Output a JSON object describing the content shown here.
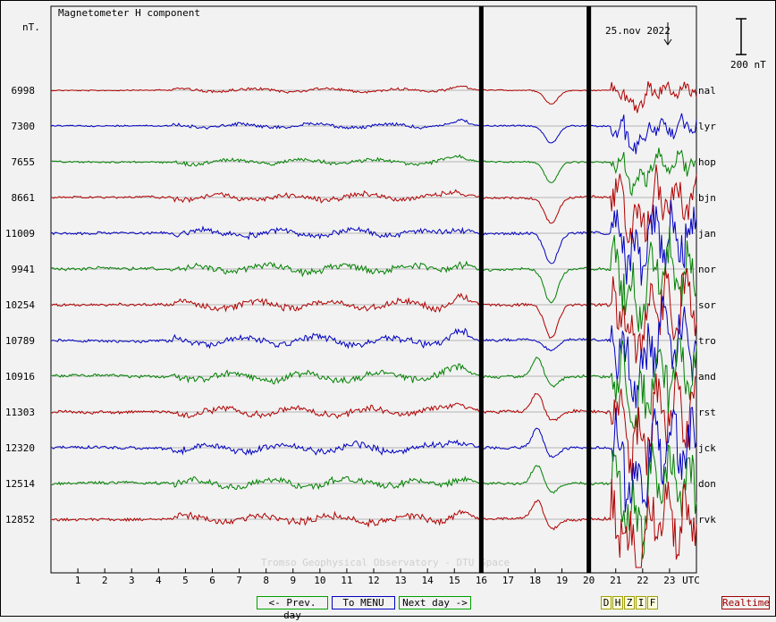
{
  "chart_data": {
    "type": "line",
    "title": "Magnetometer H component",
    "date_label": "25.nov 2022",
    "unit_label": "nT.",
    "scale_bar_label": "200 nT",
    "xlabel": "UTC",
    "xlim": [
      0,
      24
    ],
    "x_ticks": [
      1,
      2,
      3,
      4,
      5,
      6,
      7,
      8,
      9,
      10,
      11,
      12,
      13,
      14,
      15,
      16,
      17,
      18,
      19,
      20,
      21,
      22,
      23
    ],
    "watermark": "Tromso Geophysical Observatory - DTU Space",
    "markers_utc": [
      16,
      20
    ],
    "grid": true,
    "series": [
      {
        "name": "nal",
        "baseline": 6998,
        "color": "#b00000",
        "amp": 0.4
      },
      {
        "name": "lyr",
        "baseline": 7300,
        "color": "#0000c0",
        "amp": 0.5
      },
      {
        "name": "hop",
        "baseline": 7655,
        "color": "#008000",
        "amp": 0.6
      },
      {
        "name": "bjn",
        "baseline": 8661,
        "color": "#b00000",
        "amp": 0.75
      },
      {
        "name": "jan",
        "baseline": 11009,
        "color": "#0000c0",
        "amp": 0.9
      },
      {
        "name": "nor",
        "baseline": 9941,
        "color": "#008000",
        "amp": 1.0
      },
      {
        "name": "sor",
        "baseline": 10254,
        "color": "#b00000",
        "amp": 1.0
      },
      {
        "name": "tro",
        "baseline": 10789,
        "color": "#0000c0",
        "amp": 1.0
      },
      {
        "name": "and",
        "baseline": 10916,
        "color": "#008000",
        "amp": 1.0
      },
      {
        "name": "rst",
        "baseline": 11303,
        "color": "#b00000",
        "amp": 1.0
      },
      {
        "name": "jck",
        "baseline": 12320,
        "color": "#0000c0",
        "amp": 1.0
      },
      {
        "name": "don",
        "baseline": 12514,
        "color": "#008000",
        "amp": 1.0
      },
      {
        "name": "rvk",
        "baseline": 12852,
        "color": "#b00000",
        "amp": 1.0
      }
    ]
  },
  "nav": {
    "prev_day": "<- Prev. day",
    "menu": "To MENU",
    "next_day": "Next day ->",
    "realtime": "Realtime"
  },
  "components": [
    "D",
    "H",
    "Z",
    "I",
    "F"
  ],
  "colors": {
    "prev_border": "#00a000",
    "menu_border": "#0000c0",
    "next_border": "#00a000",
    "realtime_border": "#a00000"
  }
}
